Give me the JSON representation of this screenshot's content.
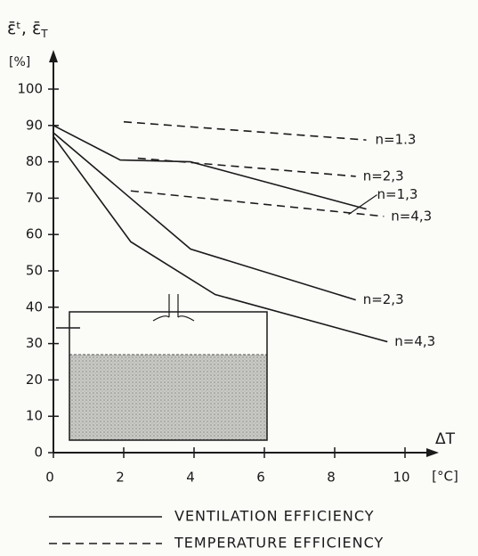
{
  "chart_data": {
    "type": "line",
    "y_label": {
      "main": "ε̄ᵗ, ε̄",
      "sub": "T"
    },
    "y_unit": "[%]",
    "x_label": "ΔT",
    "x_unit": "[°C]",
    "xlim": [
      0,
      10
    ],
    "ylim": [
      0,
      100
    ],
    "xticks": [
      0,
      2,
      4,
      6,
      8,
      10
    ],
    "yticks": [
      0,
      10,
      20,
      30,
      40,
      50,
      60,
      70,
      80,
      90,
      100
    ],
    "color": "#1a1a1a",
    "series": [
      {
        "name": "n=1,3",
        "style": "solid",
        "x": [
          0,
          1.9,
          3.9,
          8.9
        ],
        "values": [
          90,
          80.5,
          80,
          67
        ]
      },
      {
        "name": "n=2,3",
        "style": "solid",
        "x": [
          0,
          3.9,
          8.6
        ],
        "values": [
          88,
          56,
          42
        ]
      },
      {
        "name": "n=4,3",
        "style": "solid",
        "x": [
          0,
          2.2,
          4.6,
          9.5
        ],
        "values": [
          87,
          58,
          43.5,
          30.5
        ]
      },
      {
        "name": "n=1.3",
        "style": "dashed",
        "x": [
          2,
          8.9
        ],
        "values": [
          91,
          86
        ]
      },
      {
        "name": "n=2,3",
        "style": "dashed",
        "x": [
          2.4,
          8.6
        ],
        "values": [
          81,
          76
        ]
      },
      {
        "name": "n=4,3",
        "style": "dashed",
        "x": [
          2.2,
          9.4
        ],
        "values": [
          72,
          65
        ]
      }
    ],
    "legend": [
      {
        "label": "VENTILATION EFFICIENCY",
        "style": "solid"
      },
      {
        "label": "TEMPERATURE EFFICIENCY",
        "style": "dashed"
      }
    ]
  }
}
